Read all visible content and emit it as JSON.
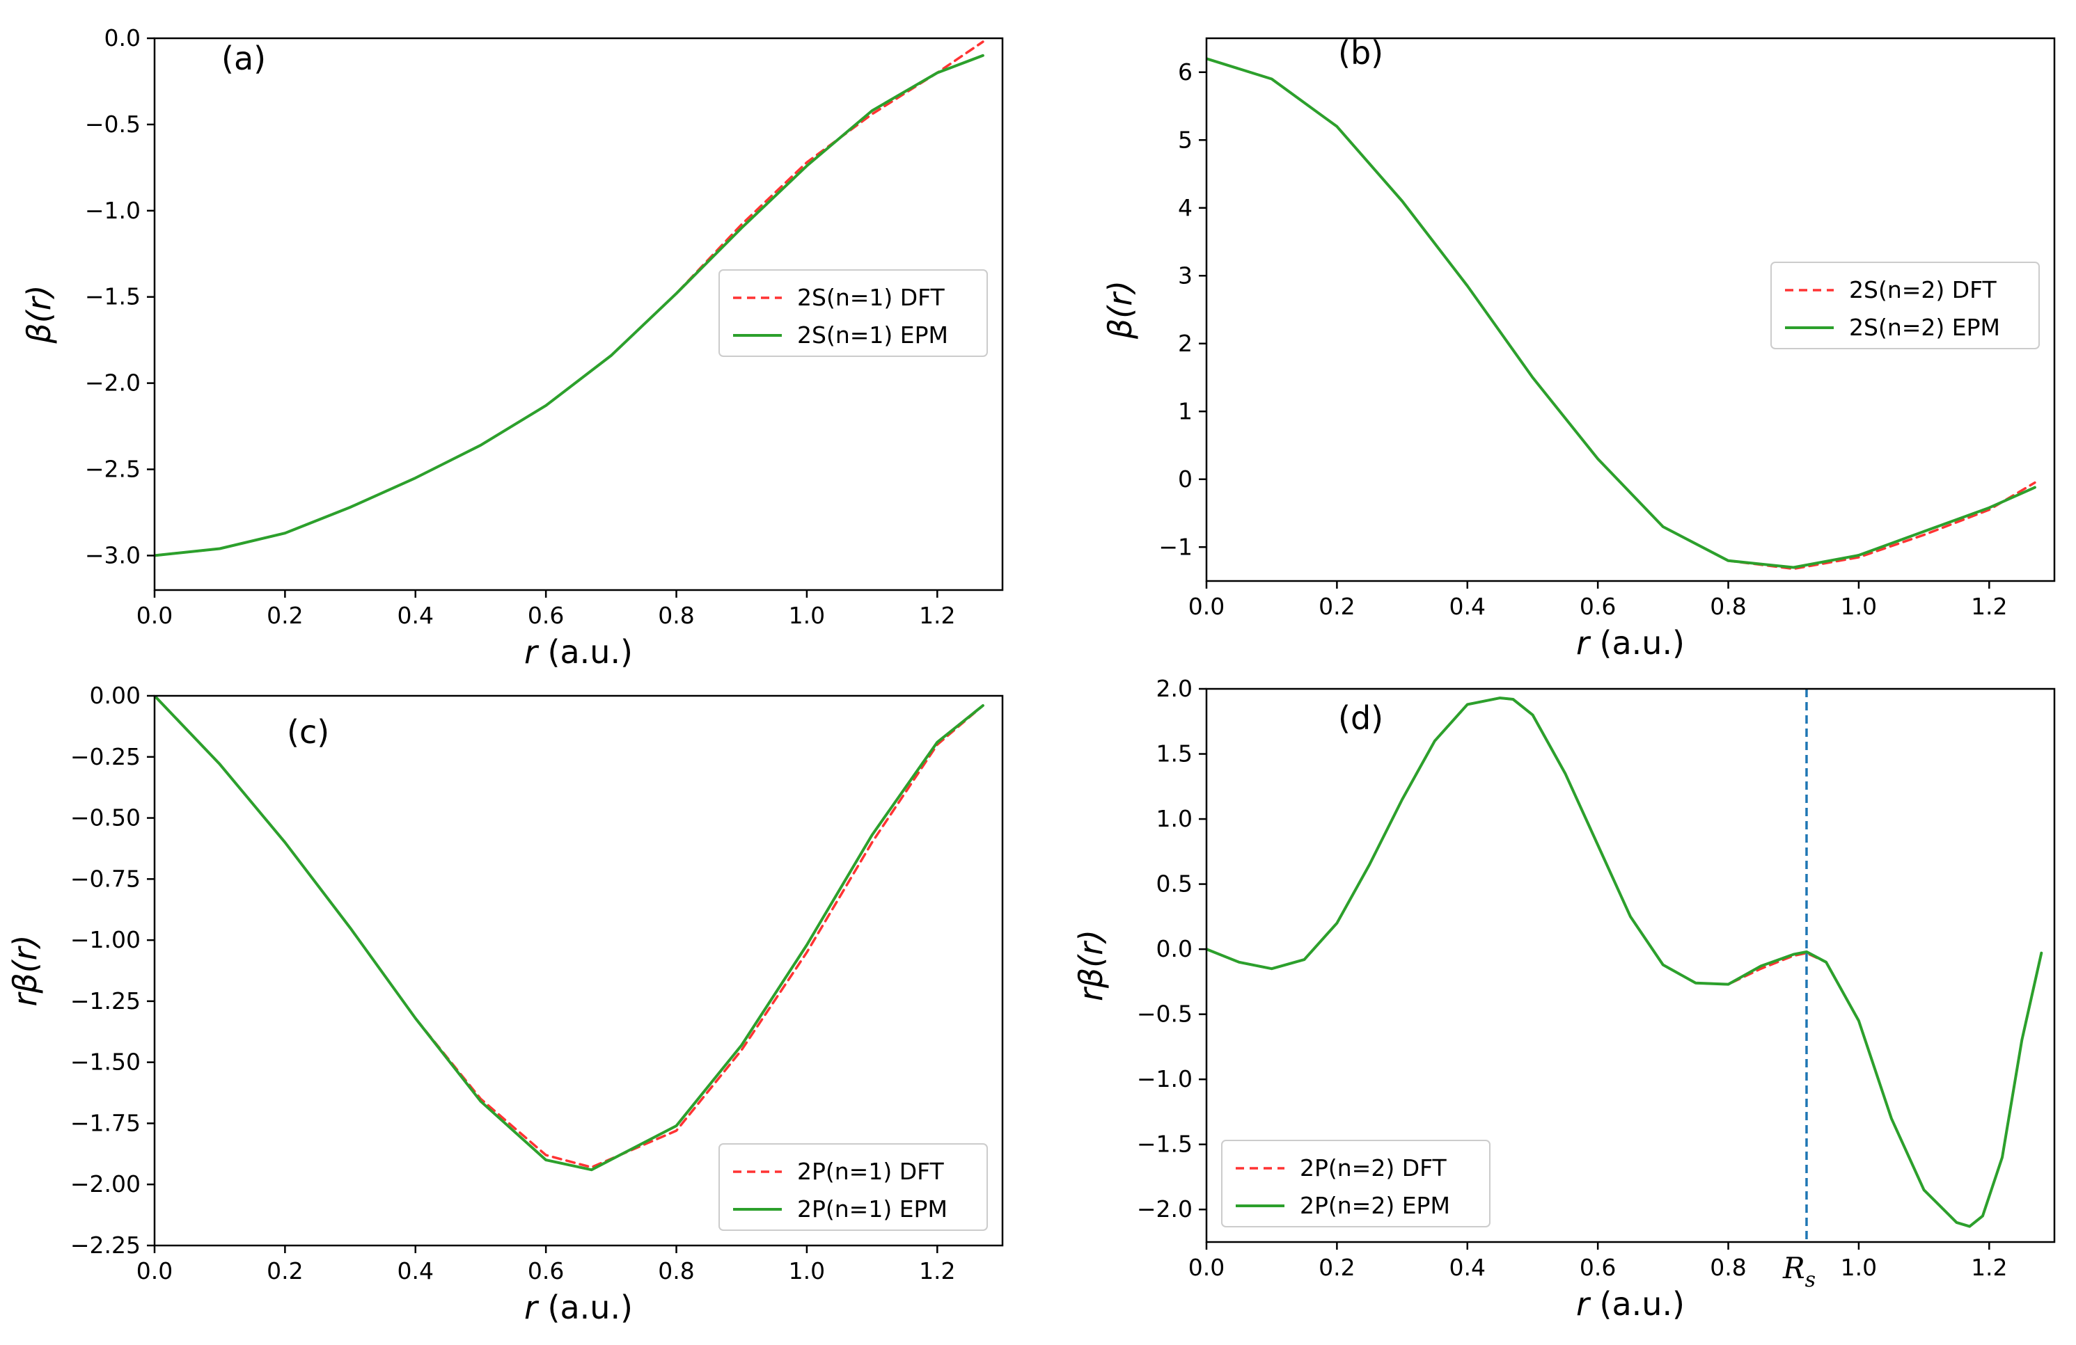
{
  "chart_data": [
    {
      "panel": "(a)",
      "type": "line",
      "xlabel_var": "r",
      "xlabel_unit": " (a.u.)",
      "ylabel": "β(r)",
      "xlim": [
        0,
        1.3
      ],
      "ylim": [
        -3.2,
        0
      ],
      "xticks": [
        0,
        0.2,
        0.4,
        0.6,
        0.8,
        1.0,
        1.2
      ],
      "xtick_labels": [
        "0.0",
        "0.2",
        "0.4",
        "0.6",
        "0.8",
        "1.0",
        "1.2"
      ],
      "yticks": [
        0,
        -0.5,
        -1.0,
        -1.5,
        -2.0,
        -2.5,
        -3.0
      ],
      "ytick_labels": [
        "0.0",
        "−0.5",
        "−1.0",
        "−1.5",
        "−2.0",
        "−2.5",
        "−3.0"
      ],
      "legend": "right",
      "series": [
        {
          "name": "2S(n=1) DFT",
          "style": "dashed",
          "color": "#ff3333",
          "x": [
            0,
            0.1,
            0.2,
            0.3,
            0.4,
            0.5,
            0.6,
            0.7,
            0.8,
            0.9,
            1.0,
            1.1,
            1.2,
            1.27
          ],
          "y": [
            -3.0,
            -2.96,
            -2.87,
            -2.72,
            -2.55,
            -2.36,
            -2.13,
            -1.84,
            -1.48,
            -1.08,
            -0.72,
            -0.44,
            -0.2,
            -0.02
          ]
        },
        {
          "name": "2S(n=1) EPM",
          "style": "solid",
          "color": "#2ca02c",
          "x": [
            0,
            0.1,
            0.2,
            0.3,
            0.4,
            0.5,
            0.6,
            0.7,
            0.8,
            0.9,
            1.0,
            1.1,
            1.2,
            1.27
          ],
          "y": [
            -3.0,
            -2.96,
            -2.87,
            -2.72,
            -2.55,
            -2.36,
            -2.13,
            -1.84,
            -1.48,
            -1.1,
            -0.74,
            -0.42,
            -0.2,
            -0.1
          ]
        }
      ]
    },
    {
      "panel": "(b)",
      "type": "line",
      "xlabel_var": "r",
      "xlabel_unit": " (a.u.)",
      "ylabel": "β(r)",
      "xlim": [
        0,
        1.3
      ],
      "ylim": [
        -1.5,
        6.5
      ],
      "xticks": [
        0,
        0.2,
        0.4,
        0.6,
        0.8,
        1.0,
        1.2
      ],
      "xtick_labels": [
        "0.0",
        "0.2",
        "0.4",
        "0.6",
        "0.8",
        "1.0",
        "1.2"
      ],
      "yticks": [
        6,
        5,
        4,
        3,
        2,
        1,
        0,
        -1
      ],
      "ytick_labels": [
        "6",
        "5",
        "4",
        "3",
        "2",
        "1",
        "0",
        "−1"
      ],
      "legend": "right",
      "series": [
        {
          "name": "2S(n=2) DFT",
          "style": "dashed",
          "color": "#ff3333",
          "x": [
            0,
            0.1,
            0.2,
            0.3,
            0.4,
            0.5,
            0.6,
            0.7,
            0.8,
            0.9,
            1.0,
            1.1,
            1.2,
            1.27
          ],
          "y": [
            6.2,
            5.9,
            5.2,
            4.1,
            2.85,
            1.5,
            0.3,
            -0.7,
            -1.2,
            -1.32,
            -1.15,
            -0.82,
            -0.45,
            -0.05
          ]
        },
        {
          "name": "2S(n=2) EPM",
          "style": "solid",
          "color": "#2ca02c",
          "x": [
            0,
            0.1,
            0.2,
            0.3,
            0.4,
            0.5,
            0.6,
            0.7,
            0.8,
            0.9,
            1.0,
            1.1,
            1.2,
            1.27
          ],
          "y": [
            6.2,
            5.9,
            5.2,
            4.1,
            2.85,
            1.5,
            0.3,
            -0.7,
            -1.2,
            -1.3,
            -1.12,
            -0.77,
            -0.42,
            -0.12
          ]
        }
      ]
    },
    {
      "panel": "(c)",
      "type": "line",
      "xlabel_var": "r",
      "xlabel_unit": " (a.u.)",
      "ylabel": "rβ(r)",
      "xlim": [
        0,
        1.3
      ],
      "ylim": [
        -2.25,
        0
      ],
      "xticks": [
        0,
        0.2,
        0.4,
        0.6,
        0.8,
        1.0,
        1.2
      ],
      "xtick_labels": [
        "0.0",
        "0.2",
        "0.4",
        "0.6",
        "0.8",
        "1.0",
        "1.2"
      ],
      "yticks": [
        0,
        -0.25,
        -0.5,
        -0.75,
        -1.0,
        -1.25,
        -1.5,
        -1.75,
        -2.0,
        -2.25
      ],
      "ytick_labels": [
        "0.00",
        "−0.25",
        "−0.50",
        "−0.75",
        "−1.00",
        "−1.25",
        "−1.50",
        "−1.75",
        "−2.00",
        "−2.25"
      ],
      "legend": "lower-right",
      "series": [
        {
          "name": "2P(n=1) DFT",
          "style": "dashed",
          "color": "#ff3333",
          "x": [
            0,
            0.1,
            0.2,
            0.3,
            0.4,
            0.5,
            0.6,
            0.67,
            0.8,
            0.9,
            1.0,
            1.1,
            1.2,
            1.27
          ],
          "y": [
            0,
            -0.28,
            -0.6,
            -0.95,
            -1.32,
            -1.65,
            -1.88,
            -1.93,
            -1.78,
            -1.45,
            -1.05,
            -0.6,
            -0.2,
            -0.04
          ]
        },
        {
          "name": "2P(n=1) EPM",
          "style": "solid",
          "color": "#2ca02c",
          "x": [
            0,
            0.1,
            0.2,
            0.3,
            0.4,
            0.5,
            0.6,
            0.67,
            0.8,
            0.9,
            1.0,
            1.1,
            1.2,
            1.27
          ],
          "y": [
            0,
            -0.28,
            -0.6,
            -0.95,
            -1.32,
            -1.66,
            -1.9,
            -1.94,
            -1.76,
            -1.43,
            -1.02,
            -0.57,
            -0.19,
            -0.04
          ]
        }
      ]
    },
    {
      "panel": "(d)",
      "type": "line",
      "xlabel_var": "r",
      "xlabel_unit": " (a.u.)",
      "ylabel": "rβ(r)",
      "xlim": [
        0,
        1.3
      ],
      "ylim": [
        -2.25,
        2.0
      ],
      "xticks": [
        0,
        0.2,
        0.4,
        0.6,
        0.8,
        1.0,
        1.2
      ],
      "xtick_labels": [
        "0.0",
        "0.2",
        "0.4",
        "0.6",
        "0.8",
        "1.0",
        "1.2"
      ],
      "yticks": [
        2.0,
        1.5,
        1.0,
        0.5,
        0.0,
        -0.5,
        -1.0,
        -1.5,
        -2.0
      ],
      "ytick_labels": [
        "2.0",
        "1.5",
        "1.0",
        "0.5",
        "0.0",
        "−0.5",
        "−1.0",
        "−1.5",
        "−2.0"
      ],
      "vline": {
        "x": 0.92,
        "label": "R",
        "subscript": "s",
        "color": "#1f77b4"
      },
      "legend": "lower-left",
      "series": [
        {
          "name": "2P(n=2) DFT",
          "style": "dashed",
          "color": "#ff3333",
          "x": [
            0,
            0.05,
            0.1,
            0.15,
            0.2,
            0.25,
            0.3,
            0.35,
            0.4,
            0.45,
            0.47,
            0.5,
            0.55,
            0.6,
            0.65,
            0.7,
            0.75,
            0.8,
            0.85,
            0.9,
            0.92,
            0.95,
            1.0,
            1.05,
            1.1,
            1.15,
            1.17,
            1.19,
            1.22,
            1.25,
            1.28
          ],
          "y": [
            0,
            -0.1,
            -0.15,
            -0.08,
            0.2,
            0.65,
            1.15,
            1.6,
            1.88,
            1.93,
            1.92,
            1.8,
            1.35,
            0.8,
            0.25,
            -0.12,
            -0.26,
            -0.27,
            -0.15,
            -0.05,
            -0.03,
            -0.1,
            -0.55,
            -1.3,
            -1.85,
            -2.1,
            -2.13,
            -2.05,
            -1.6,
            -0.7,
            -0.03
          ]
        },
        {
          "name": "2P(n=2) EPM",
          "style": "solid",
          "color": "#2ca02c",
          "x": [
            0,
            0.05,
            0.1,
            0.15,
            0.2,
            0.25,
            0.3,
            0.35,
            0.4,
            0.45,
            0.47,
            0.5,
            0.55,
            0.6,
            0.65,
            0.7,
            0.75,
            0.8,
            0.85,
            0.9,
            0.92,
            0.95,
            1.0,
            1.05,
            1.1,
            1.15,
            1.17,
            1.19,
            1.22,
            1.25,
            1.28
          ],
          "y": [
            0,
            -0.1,
            -0.15,
            -0.08,
            0.2,
            0.65,
            1.15,
            1.6,
            1.88,
            1.93,
            1.92,
            1.8,
            1.35,
            0.8,
            0.25,
            -0.12,
            -0.26,
            -0.27,
            -0.13,
            -0.04,
            -0.02,
            -0.1,
            -0.55,
            -1.3,
            -1.85,
            -2.1,
            -2.13,
            -2.05,
            -1.6,
            -0.7,
            -0.03
          ]
        }
      ]
    }
  ]
}
